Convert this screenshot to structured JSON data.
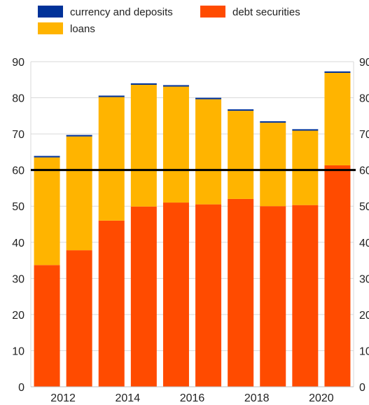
{
  "chart_data": {
    "type": "bar",
    "stacked": true,
    "categories": [
      "2011",
      "2012",
      "2013",
      "2014",
      "2015",
      "2016",
      "2017",
      "2018",
      "2019",
      "2020"
    ],
    "x_tick_labels": [
      "",
      "2012",
      "",
      "2014",
      "",
      "2016",
      "",
      "2018",
      "",
      "2020"
    ],
    "series": [
      {
        "name": "debt securities",
        "color": "#ff4b00",
        "values": [
          33.7,
          37.8,
          46.0,
          49.9,
          51.0,
          50.5,
          52.0,
          50.0,
          50.3,
          61.3
        ]
      },
      {
        "name": "loans",
        "color": "#ffb400",
        "values": [
          29.8,
          31.5,
          34.2,
          33.7,
          32.1,
          29.1,
          24.4,
          23.1,
          20.6,
          25.6
        ]
      },
      {
        "name": "currency and deposits",
        "color": "#003299",
        "values": [
          0.4,
          0.4,
          0.4,
          0.4,
          0.4,
          0.4,
          0.4,
          0.4,
          0.4,
          0.4
        ]
      }
    ],
    "reference_line": {
      "value": 60,
      "color": "#000000"
    },
    "ylim": [
      0,
      90
    ],
    "yticks": [
      0,
      10,
      20,
      30,
      40,
      50,
      60,
      70,
      80,
      90
    ],
    "secondary_y_axis": true,
    "legend_position": "top",
    "grid": true,
    "title": "",
    "xlabel": "",
    "ylabel": ""
  }
}
